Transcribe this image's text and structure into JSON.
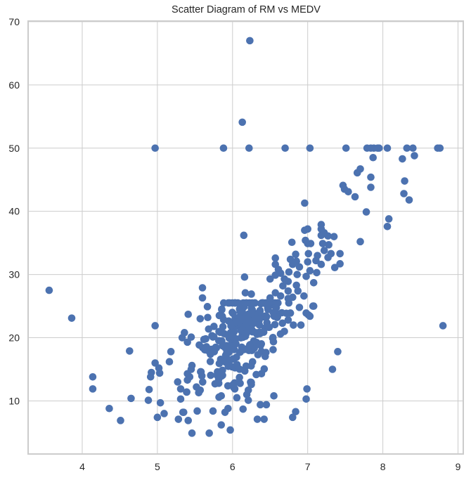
{
  "chart_data": {
    "type": "scatter",
    "title": "Scatter Diagram of RM vs MEDV",
    "xlabel": "",
    "ylabel": "",
    "xlim": [
      3.28,
      9.07
    ],
    "ylim": [
      1.6,
      70.1
    ],
    "xticks": [
      4,
      5,
      6,
      7,
      8,
      9
    ],
    "yticks": [
      10,
      20,
      30,
      40,
      50,
      60,
      70
    ],
    "grid": true,
    "legend": null,
    "marker_color": "#4c72b0",
    "series": [
      {
        "name": "RM vs MEDV",
        "points": [
          [
            6.23,
            67.0
          ],
          [
            6.13,
            54.1
          ],
          [
            4.97,
            50
          ],
          [
            5.88,
            50
          ],
          [
            6.22,
            50
          ],
          [
            6.7,
            50
          ],
          [
            7.03,
            50
          ],
          [
            7.51,
            50
          ],
          [
            7.79,
            50
          ],
          [
            7.84,
            50
          ],
          [
            7.88,
            50
          ],
          [
            7.93,
            50
          ],
          [
            7.95,
            50
          ],
          [
            8.06,
            50
          ],
          [
            8.32,
            50
          ],
          [
            8.4,
            50
          ],
          [
            8.73,
            50
          ],
          [
            8.76,
            50
          ],
          [
            7.87,
            48.5
          ],
          [
            8.26,
            48.3
          ],
          [
            8.42,
            48.8
          ],
          [
            7.7,
            46.7
          ],
          [
            7.66,
            46.1
          ],
          [
            7.84,
            45.4
          ],
          [
            8.29,
            44.8
          ],
          [
            7.47,
            44.1
          ],
          [
            7.49,
            43.5
          ],
          [
            7.54,
            43.1
          ],
          [
            7.84,
            43.8
          ],
          [
            8.28,
            42.8
          ],
          [
            7.63,
            42.3
          ],
          [
            8.35,
            41.8
          ],
          [
            6.96,
            41.3
          ],
          [
            7.78,
            39.9
          ],
          [
            8.08,
            38.8
          ],
          [
            8.06,
            37.6
          ],
          [
            6.15,
            36.2
          ],
          [
            6.96,
            37.0
          ],
          [
            7.0,
            37.2
          ],
          [
            7.18,
            37.9
          ],
          [
            7.18,
            37.2
          ],
          [
            7.22,
            36.6
          ],
          [
            7.18,
            36.2
          ],
          [
            7.27,
            36.1
          ],
          [
            7.35,
            36.0
          ],
          [
            6.79,
            35.1
          ],
          [
            6.97,
            35.4
          ],
          [
            7.0,
            34.9
          ],
          [
            7.04,
            34.9
          ],
          [
            7.2,
            34.9
          ],
          [
            7.28,
            34.7
          ],
          [
            7.22,
            33.8
          ],
          [
            7.7,
            35.2
          ],
          [
            7.01,
            33.3
          ],
          [
            6.84,
            33.2
          ],
          [
            7.13,
            33.0
          ],
          [
            7.31,
            33.3
          ],
          [
            7.43,
            33.3
          ],
          [
            6.57,
            32.6
          ],
          [
            6.77,
            32.4
          ],
          [
            6.85,
            32.1
          ],
          [
            7.0,
            32.0
          ],
          [
            7.11,
            32.2
          ],
          [
            7.27,
            32.7
          ],
          [
            6.57,
            31.6
          ],
          [
            6.8,
            31.6
          ],
          [
            6.89,
            31.2
          ],
          [
            7.18,
            31.6
          ],
          [
            7.36,
            31.1
          ],
          [
            7.43,
            31.7
          ],
          [
            6.61,
            30.8
          ],
          [
            6.75,
            30.4
          ],
          [
            7.03,
            30.6
          ],
          [
            7.12,
            30.3
          ],
          [
            6.86,
            30.0
          ],
          [
            6.98,
            29.7
          ],
          [
            6.16,
            29.6
          ],
          [
            6.57,
            29.9
          ],
          [
            6.64,
            30.2
          ],
          [
            6.5,
            29.3
          ],
          [
            6.69,
            29.3
          ],
          [
            3.56,
            27.5
          ],
          [
            3.86,
            23.1
          ],
          [
            4.97,
            21.9
          ],
          [
            5.41,
            23.7
          ],
          [
            5.36,
            20.8
          ],
          [
            5.33,
            20.0
          ],
          [
            5.45,
            20.1
          ],
          [
            5.4,
            19.3
          ],
          [
            4.63,
            17.9
          ],
          [
            5.18,
            17.8
          ],
          [
            5.16,
            16.2
          ],
          [
            4.97,
            16.0
          ],
          [
            5.02,
            15.2
          ],
          [
            4.92,
            14.5
          ],
          [
            4.91,
            13.8
          ],
          [
            5.03,
            14.4
          ],
          [
            4.14,
            13.8
          ],
          [
            4.14,
            11.9
          ],
          [
            5.46,
            15.6
          ],
          [
            5.45,
            15.0
          ],
          [
            5.4,
            14.3
          ],
          [
            5.43,
            13.8
          ],
          [
            5.4,
            13.3
          ],
          [
            5.27,
            13.0
          ],
          [
            5.31,
            11.9
          ],
          [
            5.39,
            11.4
          ],
          [
            5.31,
            10.3
          ],
          [
            4.89,
            11.8
          ],
          [
            4.65,
            10.4
          ],
          [
            4.88,
            10.1
          ],
          [
            5.04,
            9.7
          ],
          [
            4.36,
            8.8
          ],
          [
            4.51,
            6.9
          ],
          [
            5.0,
            7.4
          ],
          [
            5.09,
            8.0
          ],
          [
            5.34,
            8.2
          ],
          [
            5.28,
            7.1
          ],
          [
            5.41,
            6.9
          ],
          [
            5.46,
            4.9
          ],
          [
            6.99,
            11.9
          ],
          [
            6.98,
            10.3
          ],
          [
            6.84,
            8.3
          ],
          [
            6.8,
            7.4
          ],
          [
            6.55,
            10.8
          ],
          [
            6.45,
            9.4
          ],
          [
            6.37,
            9.4
          ],
          [
            6.33,
            7.1
          ],
          [
            6.42,
            7.1
          ],
          [
            6.14,
            8.7
          ],
          [
            6.21,
            10.1
          ],
          [
            6.19,
            11.0
          ],
          [
            6.21,
            11.7
          ],
          [
            6.25,
            12.6
          ],
          [
            6.03,
            11.9
          ],
          [
            5.94,
            8.8
          ],
          [
            5.9,
            8.2
          ],
          [
            5.85,
            6.2
          ],
          [
            5.97,
            5.4
          ],
          [
            5.82,
            10.6
          ],
          [
            5.85,
            10.8
          ],
          [
            5.74,
            8.4
          ],
          [
            5.53,
            8.4
          ],
          [
            5.35,
            8.2
          ],
          [
            5.69,
            4.9
          ],
          [
            5.39,
            11.4
          ],
          [
            5.55,
            11.3
          ],
          [
            5.52,
            12.2
          ],
          [
            5.57,
            11.7
          ],
          [
            5.6,
            27.9
          ],
          [
            5.6,
            26.3
          ],
          [
            6.17,
            27.1
          ],
          [
            6.25,
            26.9
          ],
          [
            5.57,
            23.0
          ],
          [
            5.67,
            23.2
          ],
          [
            7.08,
            25.0
          ],
          [
            7.01,
            23.6
          ],
          [
            6.98,
            23.9
          ],
          [
            6.89,
            24.8
          ],
          [
            6.95,
            26.6
          ],
          [
            6.91,
            22.0
          ],
          [
            6.81,
            22.0
          ],
          [
            6.69,
            21.0
          ],
          [
            6.77,
            23.9
          ],
          [
            6.74,
            22.8
          ],
          [
            6.85,
            28.3
          ],
          [
            6.87,
            27.4
          ],
          [
            7.08,
            28.7
          ],
          [
            6.64,
            26.6
          ],
          [
            6.5,
            26.3
          ],
          [
            6.57,
            27.1
          ],
          [
            6.74,
            26.2
          ],
          [
            6.8,
            26.4
          ],
          [
            6.74,
            28.9
          ],
          [
            6.67,
            28.2
          ],
          [
            6.74,
            27.4
          ],
          [
            8.8,
            21.9
          ],
          [
            7.4,
            17.8
          ],
          [
            7.33,
            15.0
          ],
          [
            7.07,
            25.0
          ],
          [
            7.03,
            23.4
          ]
        ],
        "dense_cluster": {
          "x_range": [
            5.6,
            6.7
          ],
          "y_range": [
            12,
            25.5
          ],
          "approx_count": 260
        }
      }
    ]
  }
}
